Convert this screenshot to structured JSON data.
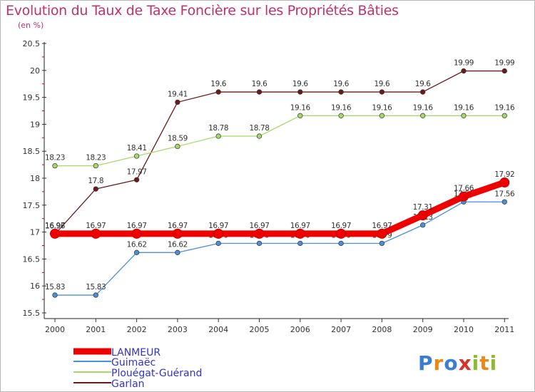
{
  "title": "Evolution du Taux de Taxe Foncière sur les Propriétés Bâties",
  "subtitle": "(en %)",
  "logo": {
    "text": "Proxiti",
    "colors": [
      "#3a7fcf",
      "#e8891a",
      "#3a7fcf",
      "#d4342b",
      "#8cbd2c",
      "#e8891a",
      "#8cbd2c"
    ]
  },
  "chart_data": {
    "type": "line",
    "title": "Evolution du Taux de Taxe Foncière sur les Propriétés Bâties",
    "ylabel": "(en %)",
    "xlabel": "",
    "x": [
      "2000",
      "2001",
      "2002",
      "2003",
      "2004",
      "2005",
      "2006",
      "2007",
      "2008",
      "2009",
      "2010",
      "2011"
    ],
    "ylim": [
      15.5,
      20.5
    ],
    "yticks": [
      "15.5",
      "16",
      "16.5",
      "17",
      "17.5",
      "18",
      "18.5",
      "19",
      "19.5",
      "20",
      "20.5"
    ],
    "legend_position": "bottom-left",
    "grid": false,
    "series": [
      {
        "name": "Garlan",
        "color": "#6b1a1a",
        "values": [
          16.96,
          17.8,
          17.97,
          19.41,
          19.6,
          19.6,
          19.6,
          19.6,
          19.6,
          19.6,
          19.99,
          19.99
        ],
        "labels": [
          "16.96",
          "17.8",
          "17.97",
          "19.41",
          "19.6",
          "19.6",
          "19.6",
          "19.6",
          "19.6",
          "19.6",
          "19.99",
          "19.99"
        ]
      },
      {
        "name": "Plouégat-Guérand",
        "color": "#a6d96a",
        "values": [
          18.23,
          18.23,
          18.41,
          18.59,
          18.78,
          18.78,
          19.16,
          19.16,
          19.16,
          19.16,
          19.16,
          19.16
        ],
        "labels": [
          "18.23",
          "18.23",
          "18.41",
          "18.59",
          "18.78",
          "18.78",
          "19.16",
          "19.16",
          "19.16",
          "19.16",
          "19.16",
          "19.16"
        ]
      },
      {
        "name": "Guimaëc",
        "color": "#4a90d9",
        "values": [
          15.83,
          15.83,
          16.62,
          16.62,
          16.79,
          16.79,
          16.79,
          16.79,
          16.79,
          17.13,
          17.56,
          17.56
        ],
        "labels": [
          "15.83",
          "15.83",
          "16.62",
          "16.62",
          "16.79",
          "16.79",
          "16.79",
          "16.79",
          "16.79",
          "17.13",
          "17.56",
          "17.56"
        ]
      },
      {
        "name": "LANMEUR",
        "color": "#ee0000",
        "values": [
          16.97,
          16.97,
          16.97,
          16.97,
          16.97,
          16.97,
          16.97,
          16.97,
          16.97,
          17.31,
          17.66,
          17.92
        ],
        "labels": [
          "16.97",
          "16.97",
          "16.97",
          "16.97",
          "16.97",
          "16.97",
          "16.97",
          "16.97",
          "16.97",
          "17.31",
          "17.66",
          "17.92"
        ]
      }
    ],
    "legend": [
      "LANMEUR",
      "Guimaëc",
      "Plouégat-Guérand",
      "Garlan"
    ]
  }
}
